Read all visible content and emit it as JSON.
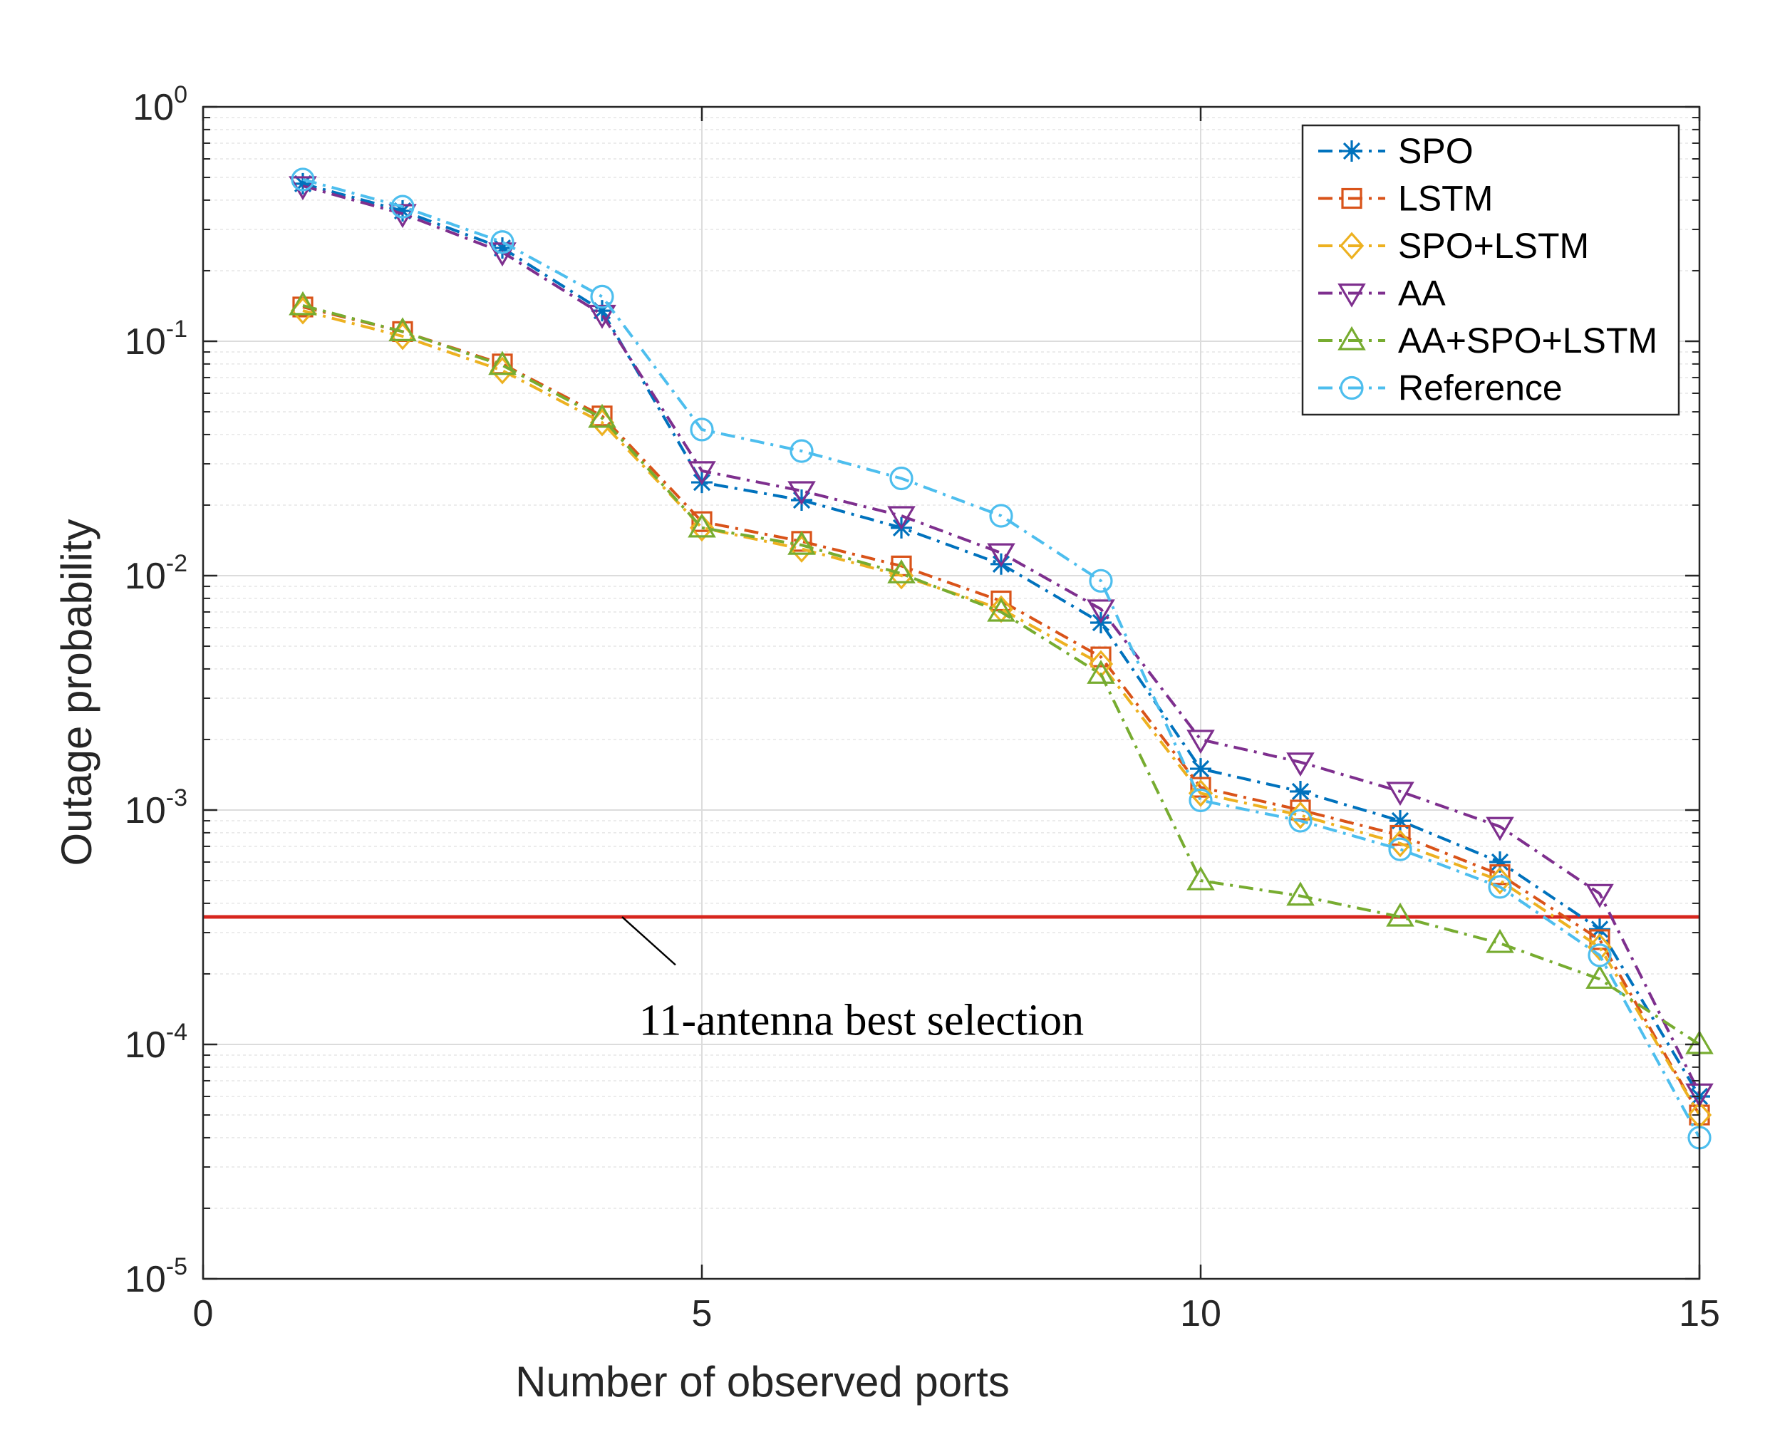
{
  "chart_data": {
    "type": "line",
    "title": "",
    "xlabel": "Number of observed ports",
    "ylabel": "Outage probability",
    "xlim": [
      0,
      15
    ],
    "ylim": [
      1e-05,
      1
    ],
    "yscale": "log",
    "grid": true,
    "legend_position": "top-right",
    "xticks": [
      0,
      5,
      10,
      15
    ],
    "xtick_labels": [
      "0",
      "5",
      "10",
      "15"
    ],
    "ytick_labels": [
      {
        "base": "10",
        "exp": "0",
        "value": 1
      },
      {
        "base": "10",
        "exp": "-1",
        "value": 0.1
      },
      {
        "base": "10",
        "exp": "-2",
        "value": 0.01
      },
      {
        "base": "10",
        "exp": "-3",
        "value": 0.001
      },
      {
        "base": "10",
        "exp": "-4",
        "value": 0.0001
      },
      {
        "base": "10",
        "exp": "-5",
        "value": 1e-05
      }
    ],
    "x": [
      1,
      2,
      3,
      4,
      5,
      6,
      7,
      8,
      9,
      10,
      11,
      12,
      13,
      14,
      15
    ],
    "series": [
      {
        "name": "SPO",
        "color": "#0072BD",
        "marker": "asterisk",
        "values": [
          0.47,
          0.36,
          0.25,
          0.135,
          0.025,
          0.021,
          0.016,
          0.0112,
          0.0063,
          0.0015,
          0.0012,
          0.0009,
          0.0006,
          0.00031,
          6e-05
        ]
      },
      {
        "name": "LSTM",
        "color": "#D95319",
        "marker": "square",
        "values": [
          0.14,
          0.11,
          0.08,
          0.048,
          0.017,
          0.014,
          0.011,
          0.0078,
          0.0045,
          0.00125,
          0.001,
          0.00078,
          0.00053,
          0.00028,
          5e-05
        ]
      },
      {
        "name": "SPO+LSTM",
        "color": "#EDB120",
        "marker": "diamond",
        "values": [
          0.135,
          0.105,
          0.075,
          0.045,
          0.016,
          0.013,
          0.01,
          0.0072,
          0.0042,
          0.00118,
          0.00095,
          0.00072,
          0.0005,
          0.00026,
          5e-05
        ]
      },
      {
        "name": "AA",
        "color": "#7E2F8E",
        "marker": "triangle-down",
        "values": [
          0.46,
          0.35,
          0.24,
          0.13,
          0.028,
          0.023,
          0.018,
          0.0125,
          0.0072,
          0.002,
          0.0016,
          0.0012,
          0.00085,
          0.00044,
          6.2e-05
        ]
      },
      {
        "name": "AA+SPO+LSTM",
        "color": "#77AC30",
        "marker": "triangle-up",
        "values": [
          0.142,
          0.11,
          0.079,
          0.047,
          0.016,
          0.0135,
          0.0102,
          0.007,
          0.0038,
          0.0005,
          0.00043,
          0.00035,
          0.00027,
          0.00019,
          0.0001
        ]
      },
      {
        "name": "Reference",
        "color": "#4DBEEE",
        "marker": "circle",
        "values": [
          0.49,
          0.375,
          0.265,
          0.155,
          0.042,
          0.034,
          0.026,
          0.018,
          0.0095,
          0.0011,
          0.0009,
          0.00068,
          0.00047,
          0.00024,
          4e-05
        ]
      }
    ],
    "reference_line": {
      "value": 0.00035,
      "color": "#D7261E"
    },
    "annotation": {
      "text": "11-antenna best selection",
      "x": 4.2,
      "y": 0.00035,
      "text_x": 6.6,
      "text_y": 0.00011
    }
  }
}
